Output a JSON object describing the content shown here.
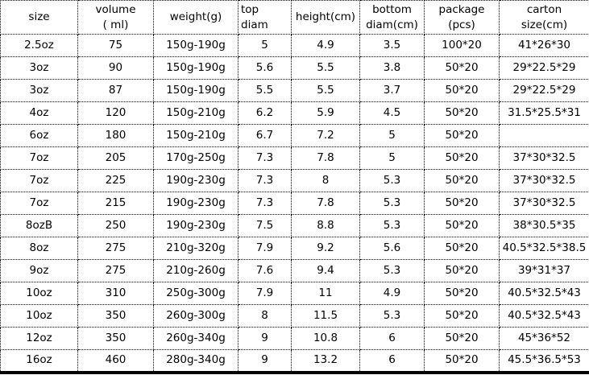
{
  "colors": {
    "text": "#000000",
    "background": "#ffffff",
    "cell_border": "#000000",
    "bottom_bar": "#000000"
  },
  "table": {
    "columns": [
      {
        "id": "size",
        "lines": [
          "size"
        ],
        "align": "center"
      },
      {
        "id": "volume",
        "lines": [
          "volume",
          "( ml)"
        ],
        "align": "center"
      },
      {
        "id": "weight",
        "lines": [
          "weight(g)"
        ],
        "align": "center"
      },
      {
        "id": "top-diam",
        "lines": [
          "top",
          "diam"
        ],
        "align": "left"
      },
      {
        "id": "height",
        "lines": [
          "height(cm)"
        ],
        "align": "center"
      },
      {
        "id": "bottom-diam",
        "lines": [
          "bottom",
          "diam(cm)"
        ],
        "align": "center"
      },
      {
        "id": "package",
        "lines": [
          "package",
          "(pcs)"
        ],
        "align": "center"
      },
      {
        "id": "carton",
        "lines": [
          "carton",
          "size(cm)"
        ],
        "align": "center"
      }
    ],
    "rows": [
      [
        "2.5oz",
        "75",
        "150g-190g",
        "5",
        "4.9",
        "3.5",
        "100*20",
        "41*26*30"
      ],
      [
        "3oz",
        "90",
        "150g-190g",
        "5.6",
        "5.5",
        "3.8",
        "50*20",
        "29*22.5*29"
      ],
      [
        "3oz",
        "87",
        "150g-190g",
        "5.5",
        "5.5",
        "3.7",
        "50*20",
        "29*22.5*29"
      ],
      [
        "4oz",
        "120",
        "150g-210g",
        "6.2",
        "5.9",
        "4.5",
        "50*20",
        "31.5*25.5*31"
      ],
      [
        "6oz",
        "180",
        "150g-210g",
        "6.7",
        "7.2",
        "5",
        "50*20",
        ""
      ],
      [
        "7oz",
        "205",
        "170g-250g",
        "7.3",
        "7.8",
        "5",
        "50*20",
        "37*30*32.5"
      ],
      [
        "7oz",
        "225",
        "190g-230g",
        "7.3",
        "8",
        "5.3",
        "50*20",
        "37*30*32.5"
      ],
      [
        "7oz",
        "215",
        "190g-230g",
        "7.3",
        "7.8",
        "5.3",
        "50*20",
        "37*30*32.5"
      ],
      [
        "8ozB",
        "250",
        "190g-230g",
        "7.5",
        "8.8",
        "5.3",
        "50*20",
        "38*30.5*35"
      ],
      [
        "8oz",
        "275",
        "210g-320g",
        "7.9",
        "9.2",
        "5.6",
        "50*20",
        "40.5*32.5*38.5"
      ],
      [
        "9oz",
        "275",
        "210g-260g",
        "7.6",
        "9.4",
        "5.3",
        "50*20",
        "39*31*37"
      ],
      [
        "10oz",
        "310",
        "250g-300g",
        "7.9",
        "11",
        "4.9",
        "50*20",
        "40.5*32.5*43"
      ],
      [
        "10oz",
        "350",
        "260g-300g",
        "8",
        "11.5",
        "5.3",
        "50*20",
        "40.5*32.5*43"
      ],
      [
        "12oz",
        "350",
        "260g-340g",
        "9",
        "10.8",
        "6",
        "50*20",
        "45*36*52"
      ],
      [
        "16oz",
        "460",
        "280g-340g",
        "9",
        "13.2",
        "6",
        "50*20",
        "45.5*36.5*53"
      ]
    ]
  }
}
